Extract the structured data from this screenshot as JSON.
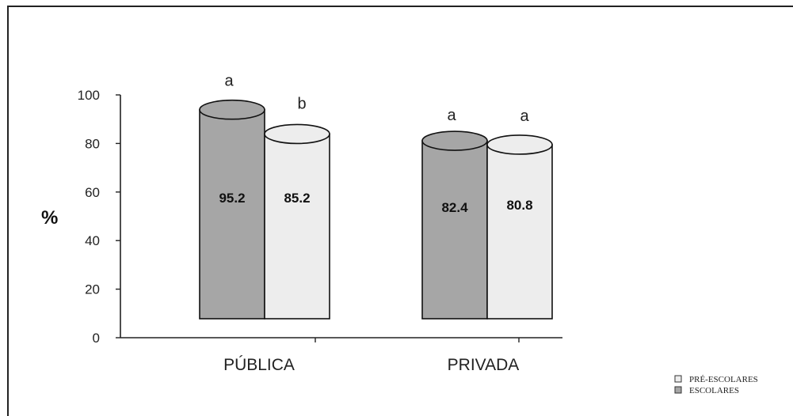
{
  "chart_data": {
    "type": "bar",
    "title": "",
    "xlabel": "",
    "ylabel": "%",
    "ylim": [
      0,
      100
    ],
    "yticks": [
      "0",
      "20",
      "40",
      "60",
      "80",
      "100"
    ],
    "categories": [
      "PÚBLICA",
      "PRIVADA"
    ],
    "series": [
      {
        "name": "ESCOLARES",
        "color": "#a6a6a6",
        "values": [
          95.2,
          82.4
        ],
        "value_labels": [
          "95.2",
          "82.4"
        ],
        "significance": [
          "a",
          "a"
        ]
      },
      {
        "name": "PRÉ-ESCOLARES",
        "color": "#ededed",
        "values": [
          85.2,
          80.8
        ],
        "value_labels": [
          "85.2",
          "80.8"
        ],
        "significance": [
          "b",
          "a"
        ]
      }
    ],
    "legend": {
      "position": "bottom-right",
      "items": [
        {
          "label": "PRÉ-ESCOLARES",
          "color": "#ededed"
        },
        {
          "label": "ESCOLARES",
          "color": "#a6a6a6"
        }
      ]
    },
    "grid": false
  }
}
